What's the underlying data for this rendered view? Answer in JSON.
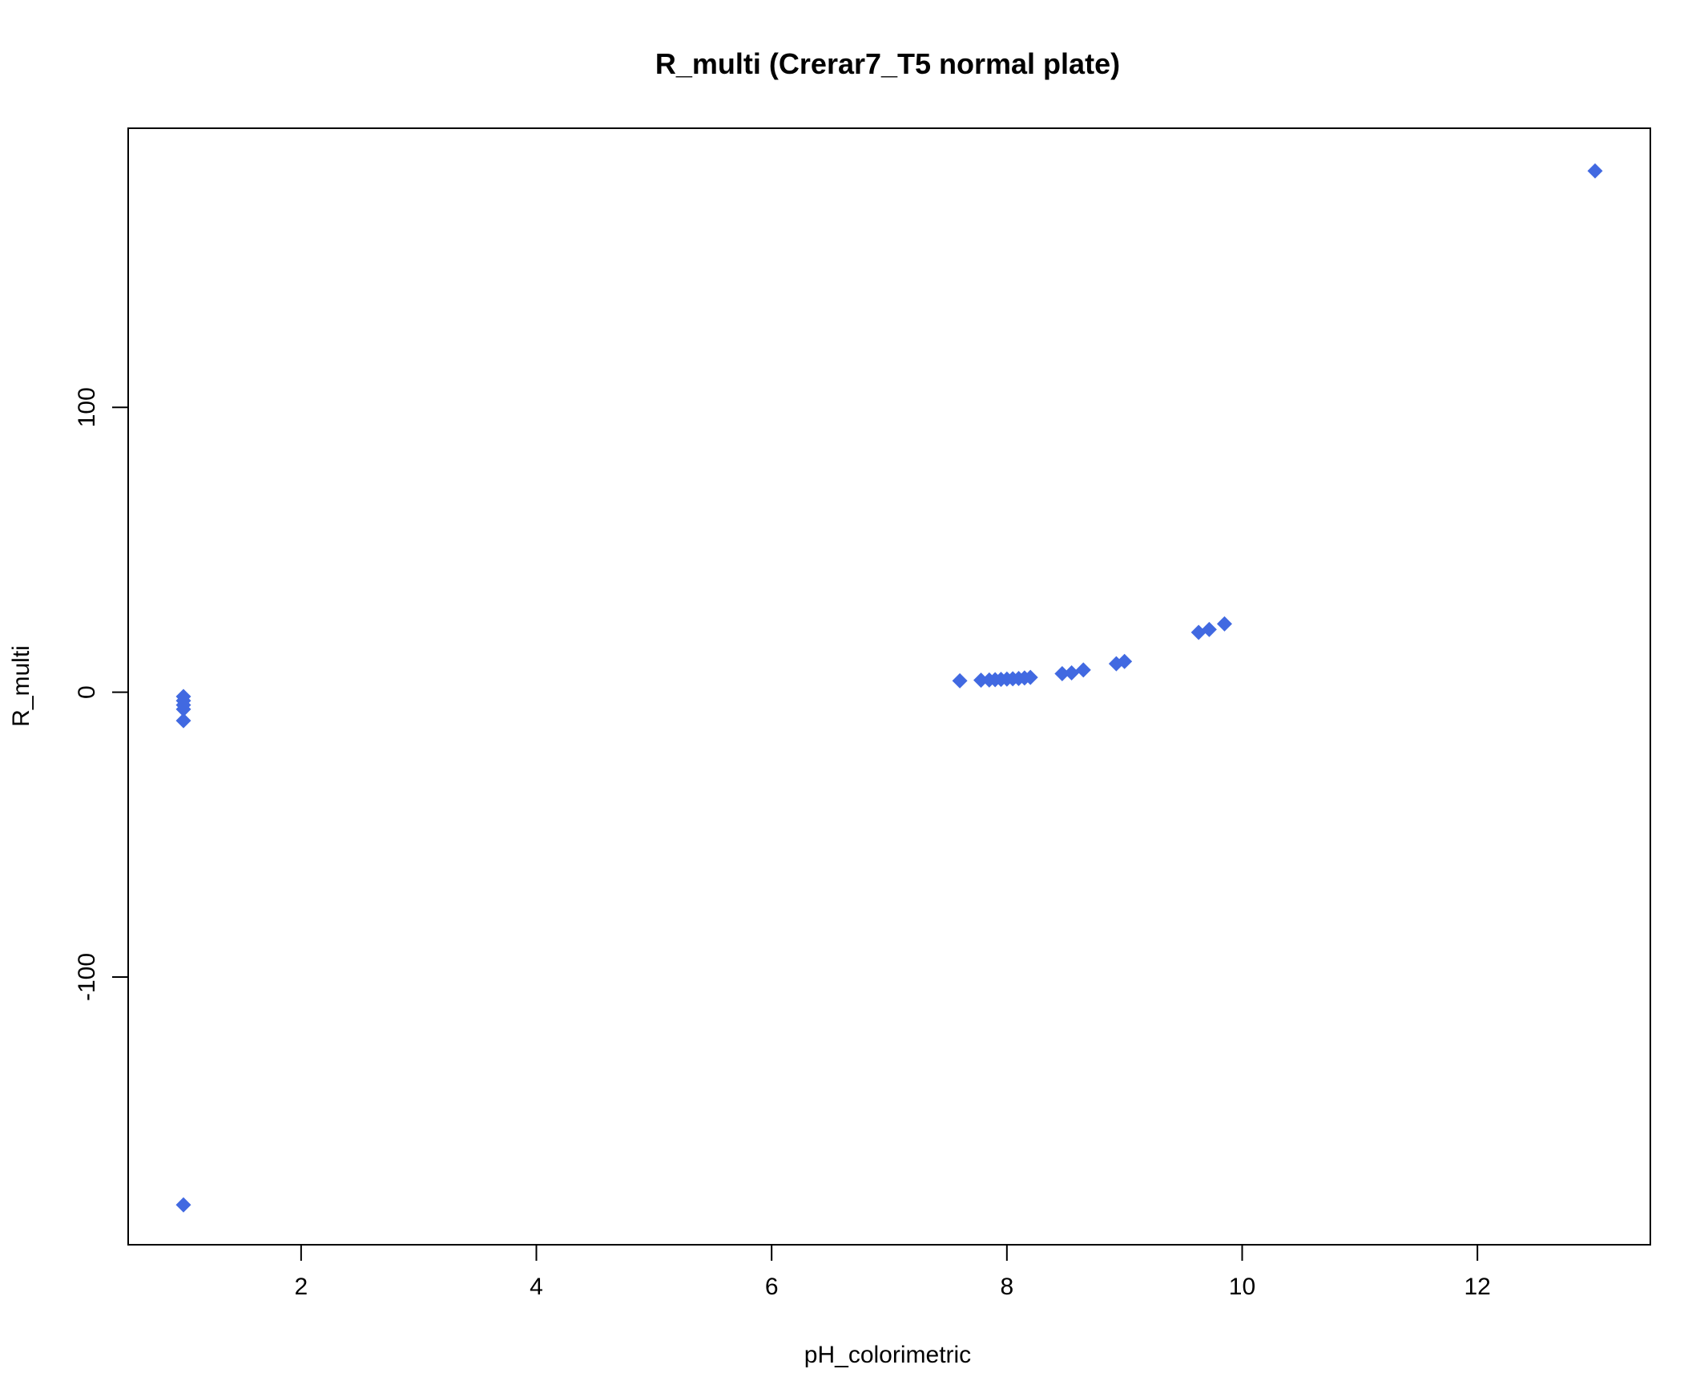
{
  "chart_data": {
    "type": "scatter",
    "title": "R_multi (Crerar7_T5 normal plate)",
    "xlabel": "pH_colorimetric",
    "ylabel": "R_multi",
    "xlim": [
      0.53,
      13.47
    ],
    "ylim": [
      -194,
      198
    ],
    "x_ticks": [
      2,
      4,
      6,
      8,
      10,
      12
    ],
    "y_ticks": [
      -100,
      0,
      100
    ],
    "marker": "diamond",
    "point_color": "#4169E1",
    "grid": false,
    "legend": "none",
    "points": [
      {
        "x": 1.0,
        "y": -1.5
      },
      {
        "x": 1.0,
        "y": -3.0
      },
      {
        "x": 1.0,
        "y": -4.5
      },
      {
        "x": 1.0,
        "y": -6.0
      },
      {
        "x": 1.0,
        "y": -10.0
      },
      {
        "x": 1.0,
        "y": -180.0
      },
      {
        "x": 7.6,
        "y": 4.0
      },
      {
        "x": 7.78,
        "y": 4.2
      },
      {
        "x": 7.85,
        "y": 4.3
      },
      {
        "x": 7.9,
        "y": 4.4
      },
      {
        "x": 7.95,
        "y": 4.5
      },
      {
        "x": 8.0,
        "y": 4.6
      },
      {
        "x": 8.05,
        "y": 4.7
      },
      {
        "x": 8.1,
        "y": 4.8
      },
      {
        "x": 8.15,
        "y": 5.0
      },
      {
        "x": 8.2,
        "y": 5.2
      },
      {
        "x": 8.47,
        "y": 6.5
      },
      {
        "x": 8.55,
        "y": 6.8
      },
      {
        "x": 8.65,
        "y": 7.8
      },
      {
        "x": 8.93,
        "y": 10.0
      },
      {
        "x": 9.0,
        "y": 10.8
      },
      {
        "x": 9.63,
        "y": 21.0
      },
      {
        "x": 9.72,
        "y": 22.0
      },
      {
        "x": 9.85,
        "y": 24.0
      },
      {
        "x": 13.0,
        "y": 183.0
      }
    ]
  }
}
